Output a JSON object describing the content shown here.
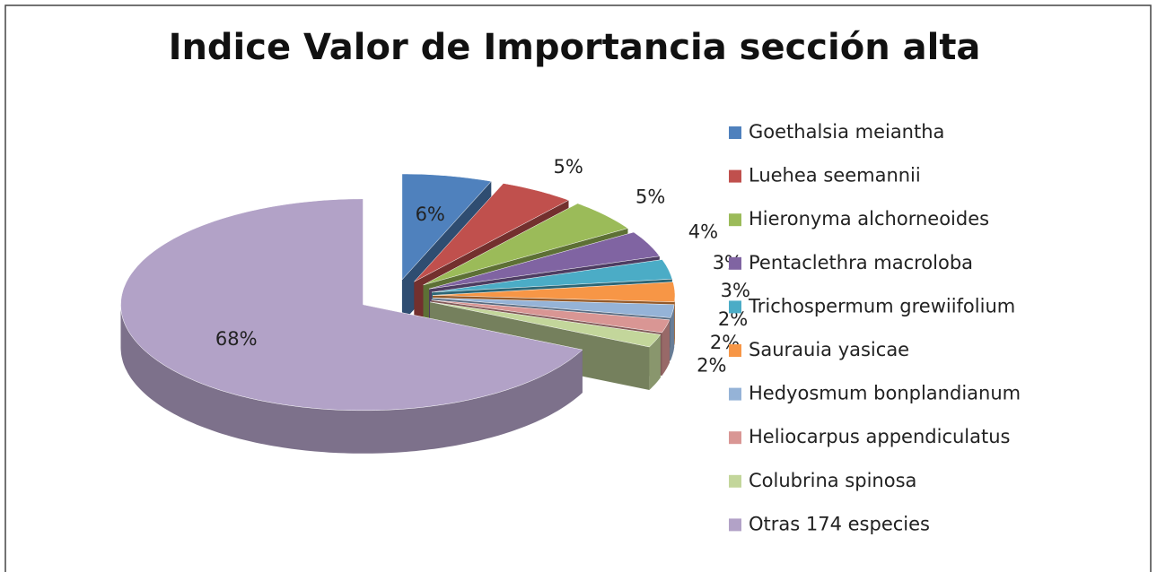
{
  "chart_data": {
    "type": "pie3d",
    "title": "Indice Valor de Importancia sección alta",
    "categories": [
      "Goethalsia meiantha",
      "Luehea seemannii",
      "Hieronyma alchorneoides",
      "Pentaclethra  macroloba",
      "Trichospermum grewiifolium",
      "Saurauia yasicae",
      "Hedyosmum bonplandianum",
      "Heliocarpus appendiculatus",
      "Colubrina spinosa",
      "Otras 174 especies"
    ],
    "values": [
      6,
      5,
      5,
      4,
      3,
      3,
      2,
      2,
      2,
      68
    ],
    "value_labels": [
      "6%",
      "5%",
      "5%",
      "4%",
      "3%",
      "3%",
      "2%",
      "2%",
      "2%",
      "68%"
    ],
    "colors": [
      "#4f81bd",
      "#c0504d",
      "#9bbb59",
      "#8064a2",
      "#4bacc6",
      "#f79646",
      "#95b3d7",
      "#d99694",
      "#c3d69b",
      "#b2a2c7"
    ],
    "legend": "right"
  }
}
